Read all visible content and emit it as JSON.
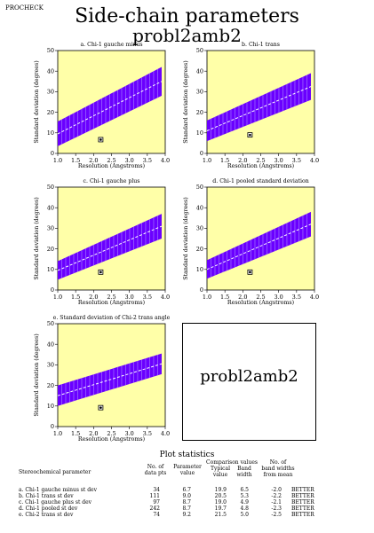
{
  "header": {
    "program": "PROCHECK",
    "title": "Side-chain parameters",
    "subtitle": "probl2amb2"
  },
  "chart_data": [
    {
      "type": "scatter",
      "title": "a. Chi-1 gauche minus",
      "xlabel": "Resolution (Angstroms)",
      "ylabel": "Standard deviation (degrees)",
      "xlim": [
        1.0,
        4.0
      ],
      "ylim": [
        0,
        50
      ],
      "xticks": [
        "1.0",
        "1.5",
        "2.0",
        "2.5",
        "3.0",
        "3.5",
        "4.0"
      ],
      "yticks": [
        "0",
        "10",
        "20",
        "30",
        "40",
        "50"
      ],
      "band": {
        "x": [
          1.0,
          3.9
        ],
        "center": [
          9.5,
          35.0
        ],
        "half_width": [
          6.0,
          7.0
        ]
      },
      "point": {
        "x": 2.2,
        "y": 6.7
      }
    },
    {
      "type": "scatter",
      "title": "b. Chi-1 trans",
      "xlabel": "Resolution (Angstroms)",
      "ylabel": "Standard deviation (degrees)",
      "xlim": [
        1.0,
        4.0
      ],
      "ylim": [
        0,
        50
      ],
      "xticks": [
        "1.0",
        "1.5",
        "2.0",
        "2.5",
        "3.0",
        "3.5",
        "4.0"
      ],
      "yticks": [
        "0",
        "10",
        "20",
        "30",
        "40",
        "50"
      ],
      "band": {
        "x": [
          1.0,
          3.9
        ],
        "center": [
          11.0,
          32.5
        ],
        "half_width": [
          5.0,
          6.5
        ]
      },
      "point": {
        "x": 2.2,
        "y": 9.0
      }
    },
    {
      "type": "scatter",
      "title": "c. Chi-1 gauche plus",
      "xlabel": "Resolution (Angstroms)",
      "ylabel": "Standard deviation (degrees)",
      "xlim": [
        1.0,
        4.0
      ],
      "ylim": [
        0,
        50
      ],
      "xticks": [
        "1.0",
        "1.5",
        "2.0",
        "2.5",
        "3.0",
        "3.5",
        "4.0"
      ],
      "yticks": [
        "0",
        "10",
        "20",
        "30",
        "40",
        "50"
      ],
      "band": {
        "x": [
          1.0,
          3.9
        ],
        "center": [
          9.5,
          31.0
        ],
        "half_width": [
          4.5,
          6.0
        ]
      },
      "point": {
        "x": 2.2,
        "y": 8.7
      }
    },
    {
      "type": "scatter",
      "title": "d. Chi-1 pooled standard deviation",
      "xlabel": "Resolution (Angstroms)",
      "ylabel": "Standard deviation (degrees)",
      "xlim": [
        1.0,
        4.0
      ],
      "ylim": [
        0,
        50
      ],
      "xticks": [
        "1.0",
        "1.5",
        "2.0",
        "2.5",
        "3.0",
        "3.5",
        "4.0"
      ],
      "yticks": [
        "0",
        "10",
        "20",
        "30",
        "40",
        "50"
      ],
      "band": {
        "x": [
          1.0,
          3.9
        ],
        "center": [
          10.0,
          32.0
        ],
        "half_width": [
          4.5,
          6.0
        ]
      },
      "point": {
        "x": 2.2,
        "y": 8.7
      }
    },
    {
      "type": "scatter",
      "title": "e. Standard deviation of Chi-2 trans angle",
      "xlabel": "Resolution (Angstroms)",
      "ylabel": "Standard deviation (degrees)",
      "xlim": [
        1.0,
        4.0
      ],
      "ylim": [
        0,
        50
      ],
      "xticks": [
        "1.0",
        "1.5",
        "2.0",
        "2.5",
        "3.0",
        "3.5",
        "4.0"
      ],
      "yticks": [
        "0",
        "10",
        "20",
        "30",
        "40",
        "50"
      ],
      "band": {
        "x": [
          1.0,
          3.9
        ],
        "center": [
          15.0,
          30.5
        ],
        "half_width": [
          5.0,
          5.0
        ]
      },
      "point": {
        "x": 2.2,
        "y": 9.2
      }
    }
  ],
  "label_box": {
    "text": "probl2amb2"
  },
  "stats": {
    "title": "Plot statistics",
    "header": {
      "param": "Stereochemical parameter",
      "no_of": "No. of",
      "data_pts": "data pts",
      "parameter": "Parameter",
      "value": "value",
      "comparison": "Comparison values",
      "typical": "Typical",
      "typical_value": "value",
      "band": "Band",
      "width": "width",
      "no_of2": "No. of",
      "band_widths": "band widths",
      "from_mean": "from mean"
    },
    "rows": [
      {
        "param": "a. Chi-1 gauche minus st dev",
        "n": "34",
        "value": "6.7",
        "typical": "19.9",
        "band": "6.5",
        "nbw": "-2.0",
        "verdict": "BETTER"
      },
      {
        "param": "b. Chi-1 trans st dev",
        "n": "111",
        "value": "9.0",
        "typical": "20.5",
        "band": "5.3",
        "nbw": "-2.2",
        "verdict": "BETTER"
      },
      {
        "param": "c. Chi-1 gauche plus st dev",
        "n": "97",
        "value": "8.7",
        "typical": "19.0",
        "band": "4.9",
        "nbw": "-2.1",
        "verdict": "BETTER"
      },
      {
        "param": "d. Chi-1 pooled st dev",
        "n": "242",
        "value": "8.7",
        "typical": "19.7",
        "band": "4.8",
        "nbw": "-2.3",
        "verdict": "BETTER"
      },
      {
        "param": "e. Chi-2 trans st dev",
        "n": "74",
        "value": "9.2",
        "typical": "21.5",
        "band": "5.0",
        "nbw": "-2.5",
        "verdict": "BETTER"
      }
    ]
  },
  "colors": {
    "plot_bg": "#ffffa8",
    "band": "#6a00ff",
    "center_line": "#ffffff",
    "point": "#000000"
  }
}
